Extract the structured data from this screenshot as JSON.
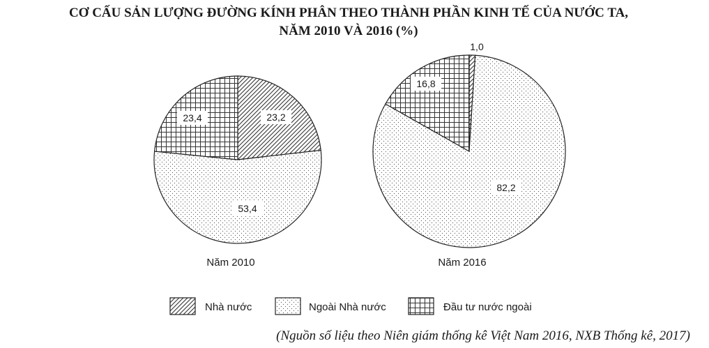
{
  "title_line1": "CƠ CẤU SẢN LƯỢNG ĐƯỜNG KÍNH PHÂN THEO THÀNH PHẦN KINH TẾ CỦA NƯỚC TA,",
  "title_line2": "NĂM 2010 VÀ 2016 (%)",
  "source": "(Nguồn số liệu theo Niên giám thống kê Việt Nam 2016, NXB Thống kê, 2017)",
  "chart_data": {
    "type": "pie",
    "categories": [
      "Nhà nước",
      "Ngoài Nhà nước",
      "Đầu tư nước ngoài"
    ],
    "patterns": [
      "diagonal-hatch",
      "dots",
      "grid"
    ],
    "legend_position": "bottom",
    "series": [
      {
        "name": "Năm 2010",
        "values": [
          23.2,
          53.4,
          23.4
        ],
        "labels": [
          "23,2",
          "53,4",
          "23,4"
        ]
      },
      {
        "name": "Năm 2016",
        "values": [
          1.0,
          82.2,
          16.8
        ],
        "labels": [
          "1,0",
          "82,2",
          "16,8"
        ]
      }
    ]
  },
  "colors": {
    "stroke": "#222222",
    "fill": "#ffffff",
    "pattern_ink": "#333333"
  }
}
